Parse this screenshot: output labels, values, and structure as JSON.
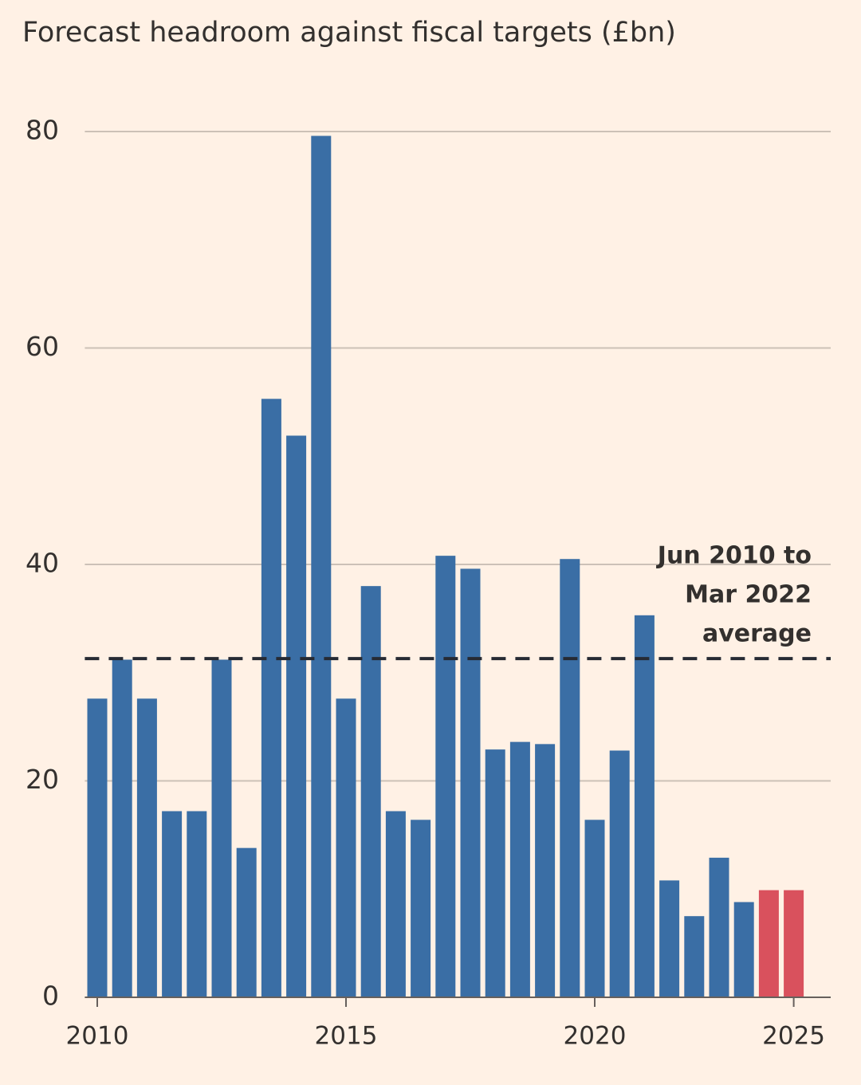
{
  "chart_data": {
    "type": "bar",
    "title": "Forecast headroom against fiscal targets (£bn)",
    "categories": [
      "2010",
      null,
      null,
      null,
      null,
      null,
      null,
      null,
      null,
      null,
      "2015",
      null,
      null,
      null,
      null,
      null,
      null,
      null,
      null,
      null,
      "2020",
      null,
      null,
      null,
      null,
      null,
      null,
      null,
      "2025"
    ],
    "values": [
      27.6,
      31.2,
      27.6,
      17.2,
      17.2,
      31.2,
      13.8,
      55.3,
      51.9,
      79.6,
      27.6,
      38.0,
      17.2,
      16.4,
      40.8,
      39.6,
      22.9,
      23.6,
      23.4,
      40.5,
      16.4,
      22.8,
      35.3,
      10.8,
      7.5,
      12.9,
      8.8,
      9.9,
      9.9
    ],
    "colors": [
      "#3a6ea5",
      "#3a6ea5",
      "#3a6ea5",
      "#3a6ea5",
      "#3a6ea5",
      "#3a6ea5",
      "#3a6ea5",
      "#3a6ea5",
      "#3a6ea5",
      "#3a6ea5",
      "#3a6ea5",
      "#3a6ea5",
      "#3a6ea5",
      "#3a6ea5",
      "#3a6ea5",
      "#3a6ea5",
      "#3a6ea5",
      "#3a6ea5",
      "#3a6ea5",
      "#3a6ea5",
      "#3a6ea5",
      "#3a6ea5",
      "#3a6ea5",
      "#3a6ea5",
      "#3a6ea5",
      "#3a6ea5",
      "#3a6ea5",
      "#d9515d",
      "#d9515d"
    ],
    "average": 31.3,
    "annotation": [
      "Jun 2010 to",
      "Mar 2022",
      "average"
    ],
    "ylim": [
      0,
      80
    ],
    "yticks": [
      0,
      20,
      40,
      60,
      80
    ],
    "grid": true
  }
}
